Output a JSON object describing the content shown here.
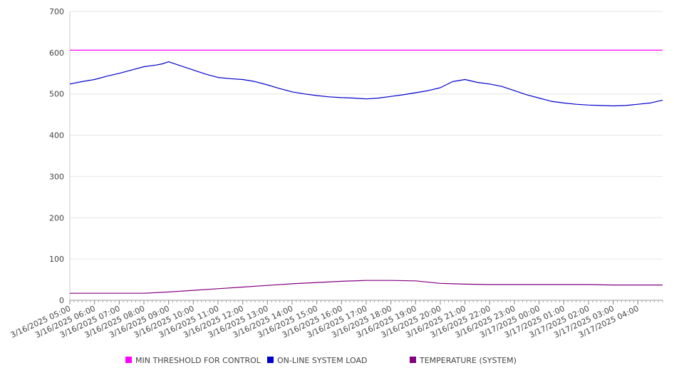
{
  "chart_data": {
    "type": "line",
    "title": "",
    "xlabel": "",
    "ylabel": "",
    "ylim": [
      0,
      700
    ],
    "y_ticks": [
      0,
      100,
      200,
      300,
      400,
      500,
      600,
      700
    ],
    "grid": true,
    "legend_position": "bottom",
    "x_tick_labels": [
      "3/16/2025 05:00",
      "3/16/2025 06:00",
      "3/16/2025 07:00",
      "3/16/2025 08:00",
      "3/16/2025 09:00",
      "3/16/2025 10:00",
      "3/16/2025 11:00",
      "3/16/2025 12:00",
      "3/16/2025 13:00",
      "3/16/2025 14:00",
      "3/16/2025 15:00",
      "3/16/2025 16:00",
      "3/16/2025 17:00",
      "3/16/2025 18:00",
      "3/16/2025 19:00",
      "3/16/2025 20:00",
      "3/16/2025 21:00",
      "3/16/2025 22:00",
      "3/16/2025 23:00",
      "3/17/2025 00:00",
      "3/17/2025 01:00",
      "3/17/2025 02:00",
      "3/17/2025 03:00",
      "3/17/2025 04:00"
    ],
    "x_start": "3/16/2025 05:00",
    "x_end": "3/17/2025 05:00",
    "series": [
      {
        "name": "MIN THRESHOLD FOR CONTROL",
        "color": "#ff00ff",
        "x": [
          "3/16/2025 05:00",
          "3/17/2025 05:00"
        ],
        "values": [
          606,
          606
        ]
      },
      {
        "name": "ON-LINE SYSTEM LOAD",
        "color": "#0000cc",
        "x": [
          "3/16/2025 05:00",
          "3/16/2025 05:30",
          "3/16/2025 06:00",
          "3/16/2025 06:30",
          "3/16/2025 07:00",
          "3/16/2025 07:30",
          "3/16/2025 08:00",
          "3/16/2025 08:30",
          "3/16/2025 08:45",
          "3/16/2025 09:00",
          "3/16/2025 09:30",
          "3/16/2025 10:00",
          "3/16/2025 10:30",
          "3/16/2025 11:00",
          "3/16/2025 11:30",
          "3/16/2025 12:00",
          "3/16/2025 12:30",
          "3/16/2025 13:00",
          "3/16/2025 13:30",
          "3/16/2025 14:00",
          "3/16/2025 14:30",
          "3/16/2025 15:00",
          "3/16/2025 15:30",
          "3/16/2025 16:00",
          "3/16/2025 16:30",
          "3/16/2025 17:00",
          "3/16/2025 17:30",
          "3/16/2025 18:00",
          "3/16/2025 18:30",
          "3/16/2025 19:00",
          "3/16/2025 19:30",
          "3/16/2025 20:00",
          "3/16/2025 20:30",
          "3/16/2025 21:00",
          "3/16/2025 21:30",
          "3/16/2025 22:00",
          "3/16/2025 22:30",
          "3/16/2025 23:00",
          "3/16/2025 23:30",
          "3/17/2025 00:00",
          "3/17/2025 00:30",
          "3/17/2025 01:00",
          "3/17/2025 01:30",
          "3/17/2025 02:00",
          "3/17/2025 02:30",
          "3/17/2025 03:00",
          "3/17/2025 03:30",
          "3/17/2025 04:00",
          "3/17/2025 04:30",
          "3/17/2025 05:00"
        ],
        "values": [
          524,
          530,
          535,
          543,
          550,
          558,
          566,
          570,
          573,
          578,
          568,
          558,
          548,
          540,
          537,
          535,
          530,
          522,
          513,
          505,
          500,
          496,
          493,
          491,
          490,
          488,
          490,
          494,
          498,
          503,
          508,
          515,
          530,
          535,
          528,
          524,
          518,
          508,
          498,
          490,
          482,
          478,
          475,
          473,
          472,
          471,
          472,
          475,
          478,
          485
        ]
      },
      {
        "name": "TEMPERATURE (SYSTEM)",
        "color": "#800080",
        "x": [
          "3/16/2025 05:00",
          "3/16/2025 06:00",
          "3/16/2025 07:00",
          "3/16/2025 08:00",
          "3/16/2025 09:00",
          "3/16/2025 10:00",
          "3/16/2025 11:00",
          "3/16/2025 12:00",
          "3/16/2025 13:00",
          "3/16/2025 14:00",
          "3/16/2025 15:00",
          "3/16/2025 16:00",
          "3/16/2025 17:00",
          "3/16/2025 18:00",
          "3/16/2025 19:00",
          "3/16/2025 20:00",
          "3/16/2025 21:00",
          "3/16/2025 22:00",
          "3/16/2025 23:00",
          "3/17/2025 00:00",
          "3/17/2025 01:00",
          "3/17/2025 02:00",
          "3/17/2025 03:00",
          "3/17/2025 04:00",
          "3/17/2025 05:00"
        ],
        "values": [
          17,
          17,
          17,
          17,
          20,
          24,
          28,
          32,
          36,
          40,
          43,
          46,
          48,
          48,
          47,
          41,
          39,
          38,
          38,
          38,
          38,
          38,
          37,
          37,
          37
        ]
      }
    ]
  }
}
